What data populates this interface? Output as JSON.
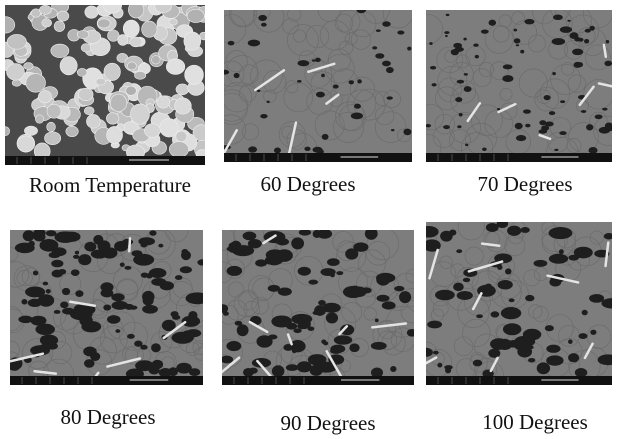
{
  "panels": [
    {
      "caption": "Room Temperature"
    },
    {
      "caption": "60 Degrees"
    },
    {
      "caption": "70 Degrees"
    },
    {
      "caption": "80 Degrees"
    },
    {
      "caption": "90 Degrees"
    },
    {
      "caption": "100 Degrees"
    }
  ]
}
